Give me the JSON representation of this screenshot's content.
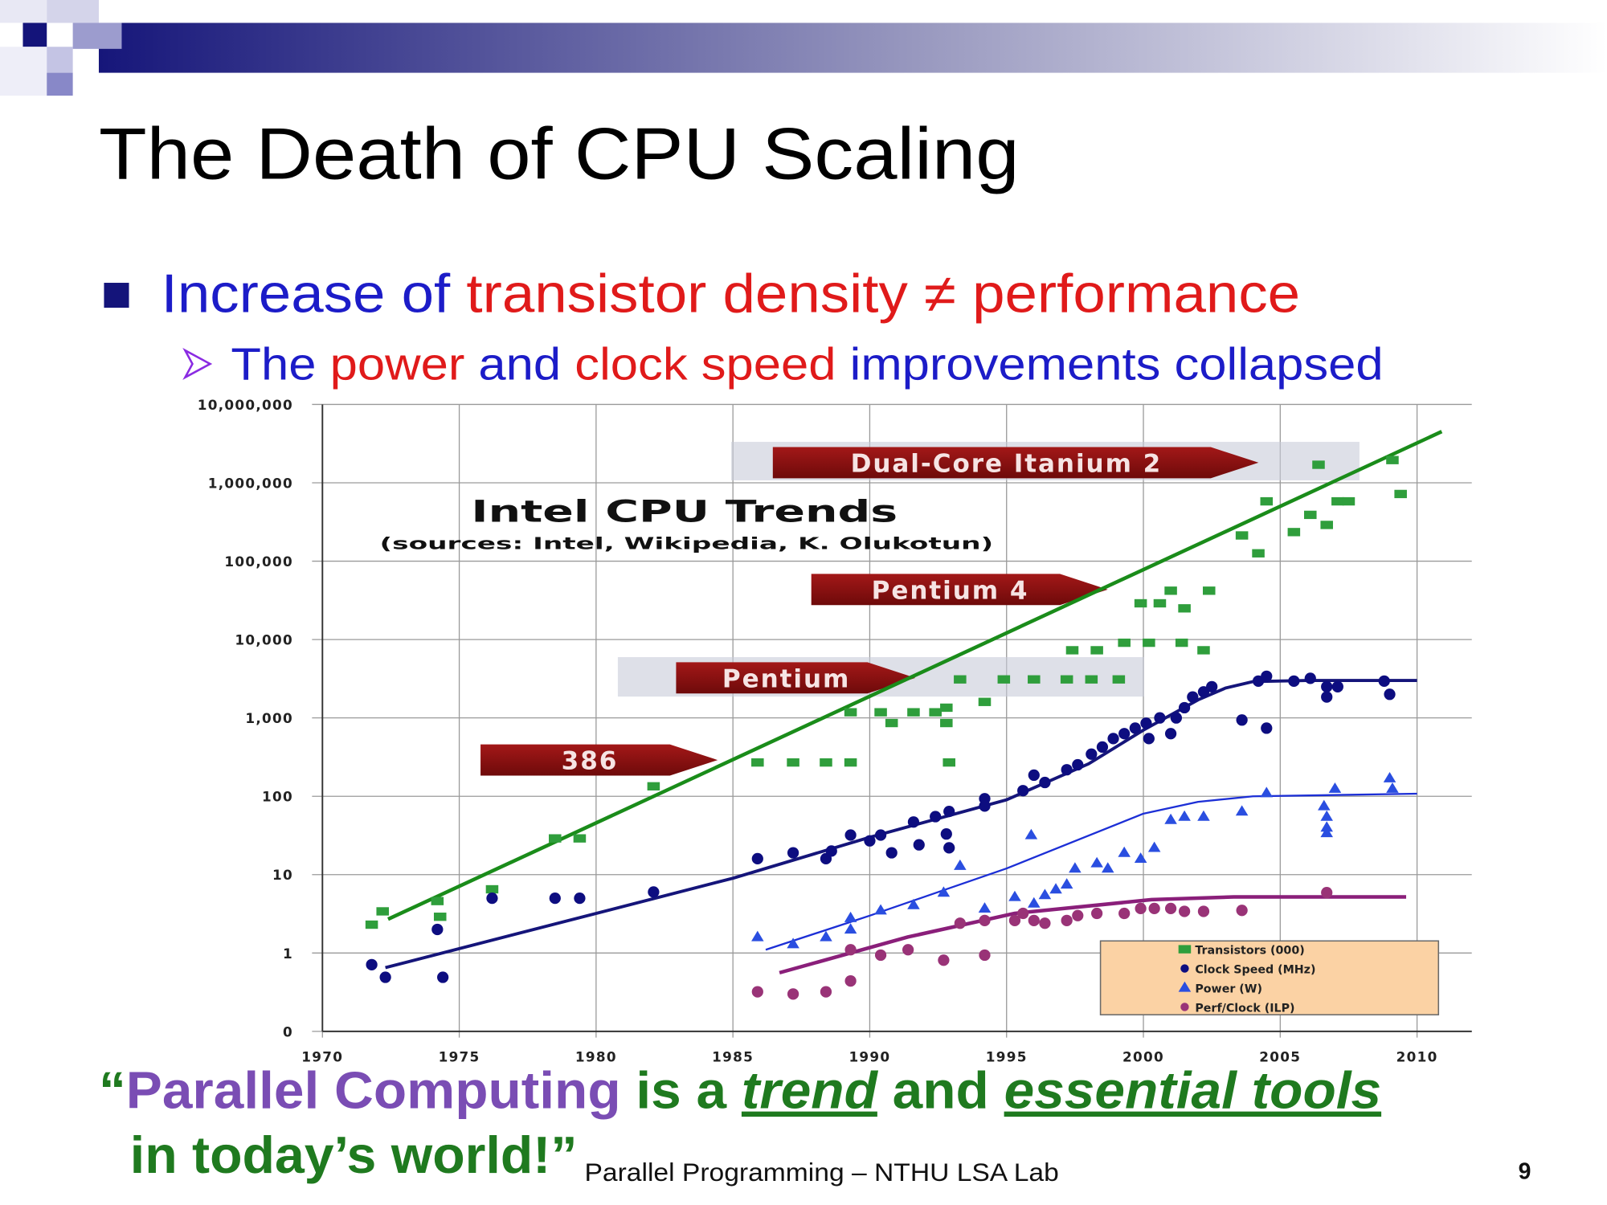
{
  "slide": {
    "title": "The Death of CPU Scaling",
    "bullet": [
      {
        "text": "Increase of ",
        "color": "#1c1cc8"
      },
      {
        "text": "transistor density ≠ performance",
        "color": "#e01a1a"
      }
    ],
    "sub_bullet": [
      {
        "text": "The ",
        "color": "#1c1cc8"
      },
      {
        "text": "power",
        "color": "#e01a1a"
      },
      {
        "text": " and ",
        "color": "#1c1cc8"
      },
      {
        "text": "clock speed",
        "color": "#e01a1a"
      },
      {
        "text": " improvements collapsed",
        "color": "#1c1cc8"
      }
    ],
    "quote": [
      [
        {
          "text": "“",
          "color": "#1f7a1f"
        },
        {
          "text": "Parallel Computing",
          "color": "#7a4db4"
        },
        {
          "text": " is a ",
          "color": "#1f7a1f"
        },
        {
          "text": "trend",
          "color": "#1f7a1f",
          "italic": true,
          "underline": true
        },
        {
          "text": " and ",
          "color": "#1f7a1f"
        },
        {
          "text": "essential tools",
          "color": "#1f7a1f",
          "italic": true,
          "underline": true
        }
      ],
      [
        {
          "text": "in today’s world!”",
          "color": "#1f7a1f"
        }
      ]
    ],
    "footer": "Parallel Programming – NTHU LSA Lab",
    "page_number": "9"
  },
  "chart_data": {
    "type": "scatter",
    "title": "Intel CPU Trends",
    "subtitle": "(sources: Intel, Wikipedia, K. Olukotun)",
    "yscale": "log",
    "grid": true,
    "legend": "lower right",
    "xlim": [
      1970,
      2012
    ],
    "xticks": [
      1970,
      1975,
      1980,
      1985,
      1990,
      1995,
      2000,
      2005,
      2010
    ],
    "ylim": [
      0.1,
      10000000
    ],
    "yticks": [
      {
        "value": 0.1,
        "label": "0"
      },
      1,
      10,
      100,
      {
        "value": 1000,
        "label": "1,000"
      },
      {
        "value": 10000,
        "label": "10,000"
      },
      {
        "value": 100000,
        "label": "100,000"
      },
      {
        "value": 1000000,
        "label": "1,000,000"
      },
      {
        "value": 10000000,
        "label": "10,000,000"
      }
    ],
    "annotations": [
      "Dual-Core Itanium 2",
      "Pentium 4",
      "Pentium",
      "386"
    ],
    "series": [
      {
        "name": "Transistors (000)",
        "color": "#2f9e3c",
        "marker": "square",
        "trend_color": "#1a8c1a",
        "x": [
          1971.8,
          1972.2,
          1974.2,
          1974.3,
          1976.2,
          1978.5,
          1979.4,
          1982.1,
          1985.9,
          1987.2,
          1988.4,
          1989.3,
          1989.3,
          1990.4,
          1990.8,
          1991.6,
          1992.4,
          1992.8,
          1992.8,
          1992.9,
          1993.3,
          1994.2,
          1994.9,
          1996.0,
          1997.2,
          1998.1,
          1999.1,
          1997.4,
          1998.3,
          1999.3,
          2000.2,
          2001.4,
          2002.2,
          1999.9,
          2000.6,
          2001.5,
          2001.0,
          2002.4,
          2003.6,
          2004.2,
          2004.5,
          2005.5,
          2006.1,
          2006.7,
          2007.1,
          2007.5,
          2006.4,
          2009.1,
          2009.4
        ],
        "values": [
          2.3,
          3.4,
          4.6,
          2.9,
          6.5,
          29,
          29,
          134,
          270,
          270,
          270,
          270,
          1180,
          1180,
          860,
          1180,
          1180,
          1350,
          860,
          270,
          3100,
          1600,
          3100,
          3100,
          3100,
          3100,
          3100,
          7300,
          7300,
          9100,
          9100,
          9100,
          7300,
          29000,
          29000,
          25000,
          42000,
          42000,
          213000,
          126000,
          580000,
          235000,
          390000,
          290000,
          580000,
          580000,
          1700000,
          1950000,
          720000
        ],
        "trend": {
          "x": [
            1972.4,
            2010.9
          ],
          "values": [
            2.7,
            4500000
          ]
        }
      },
      {
        "name": "Clock Speed (MHz)",
        "color": "#0d0d80",
        "marker": "circle",
        "trend_color": "#15157a",
        "x": [
          1971.8,
          1972.3,
          1974.4,
          1974.2,
          1976.2,
          1978.5,
          1979.4,
          1982.1,
          1985.9,
          1987.2,
          1988.4,
          1988.6,
          1989.3,
          1990.0,
          1990.4,
          1990.8,
          1991.6,
          1991.8,
          1992.4,
          1992.8,
          1992.9,
          1992.9,
          1994.2,
          1994.2,
          1995.6,
          1996.0,
          1996.4,
          1997.2,
          1997.6,
          1998.1,
          1998.5,
          1998.9,
          1999.3,
          1999.7,
          2000.1,
          2000.2,
          2000.6,
          2001.0,
          2001.2,
          2001.5,
          2001.8,
          2002.2,
          2002.5,
          2003.6,
          2004.2,
          2004.5,
          2004.5,
          2005.5,
          2006.1,
          2006.7,
          2006.7,
          2007.1,
          2008.8,
          2009.0
        ],
        "values": [
          0.71,
          0.49,
          0.49,
          2.0,
          5,
          5,
          5,
          6,
          16,
          19,
          16,
          20,
          32,
          27,
          32,
          19,
          47,
          24,
          55,
          33,
          22,
          64,
          93,
          75,
          118,
          186,
          150,
          218,
          252,
          345,
          425,
          545,
          630,
          740,
          855,
          545,
          1000,
          630,
          1000,
          1350,
          1850,
          2150,
          2500,
          940,
          2950,
          740,
          3400,
          2950,
          3200,
          1850,
          2500,
          2500,
          2950,
          2000
        ],
        "trend": {
          "x": [
            1972.3,
            1985,
            1990,
            1995,
            1998,
            2000,
            2002,
            2003,
            2004,
            2006,
            2010
          ],
          "values": [
            0.65,
            9,
            30,
            90,
            260,
            700,
            1700,
            2400,
            2900,
            3000,
            3000
          ]
        }
      },
      {
        "name": "Power (W)",
        "color": "#2a4ee0",
        "marker": "triangle",
        "trend_color": "#1c2fd6",
        "x": [
          1985.9,
          1987.2,
          1988.4,
          1989.3,
          1989.3,
          1990.4,
          1991.6,
          1992.7,
          1993.3,
          1994.2,
          1995.3,
          1995.9,
          1996.0,
          1996.4,
          1996.8,
          1997.2,
          1997.5,
          1998.3,
          1998.7,
          1999.3,
          1999.9,
          2000.4,
          2001.0,
          2001.5,
          2002.2,
          2003.6,
          2004.5,
          2006.6,
          2006.7,
          2006.7,
          2006.7,
          2007.0,
          2009.0,
          2009.1
        ],
        "values": [
          1.6,
          1.3,
          1.6,
          2.8,
          2.0,
          3.5,
          4.1,
          5.9,
          13,
          3.7,
          5.2,
          32,
          4.3,
          5.5,
          6.5,
          7.5,
          12,
          14,
          12,
          19,
          16,
          22,
          50,
          55,
          55,
          64,
          110,
          75,
          55,
          40,
          34,
          125,
          170,
          125
        ],
        "trend": {
          "x": [
            1986.2,
            1990,
            1995,
            2000,
            2002,
            2004,
            2010
          ],
          "values": [
            1.1,
            3,
            12,
            60,
            85,
            100,
            108
          ]
        }
      },
      {
        "name": "Perf/Clock (ILP)",
        "color": "#993377",
        "marker": "circle",
        "trend_color": "#8a1f7a",
        "x": [
          1985.9,
          1987.2,
          1988.4,
          1989.3,
          1989.3,
          1990.4,
          1991.4,
          1992.7,
          1993.3,
          1994.2,
          1994.2,
          1995.3,
          1995.6,
          1996.0,
          1996.4,
          1997.2,
          1997.6,
          1998.3,
          1999.3,
          1999.9,
          2000.4,
          2001.0,
          2001.5,
          2002.2,
          2003.6,
          2006.7
        ],
        "values": [
          0.32,
          0.3,
          0.32,
          0.44,
          1.1,
          0.94,
          1.1,
          0.81,
          2.4,
          0.94,
          2.6,
          2.6,
          3.2,
          2.6,
          2.4,
          2.6,
          3.0,
          3.2,
          3.2,
          3.7,
          3.7,
          3.7,
          3.4,
          3.4,
          3.5,
          5.9
        ],
        "trend": {
          "x": [
            1986.7,
            1991.4,
            1995.3,
            2000.3,
            2003.3,
            2009.6
          ],
          "values": [
            0.56,
            1.6,
            3.2,
            4.8,
            5.2,
            5.2
          ]
        }
      }
    ]
  }
}
